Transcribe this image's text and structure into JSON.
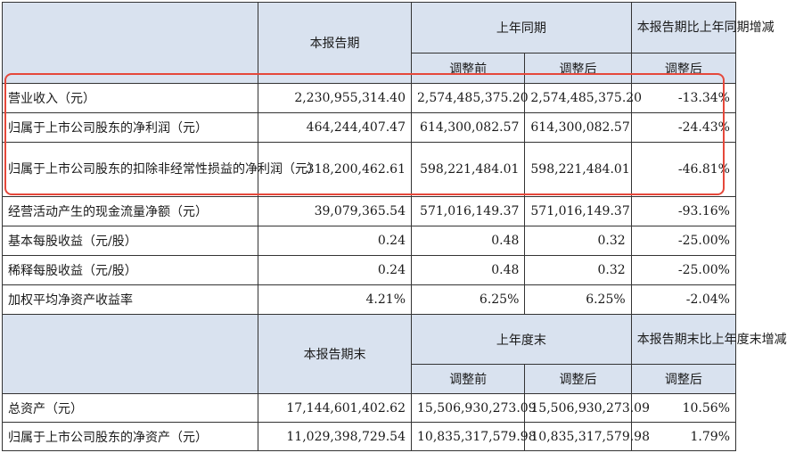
{
  "header1": {
    "current_period": "本报告期",
    "same_period_last_year": "上年同期",
    "change_label": "本报告期比上年同期增减",
    "before_adjust": "调整前",
    "after_adjust": "调整后",
    "change_sub": "调整后"
  },
  "rows1": [
    {
      "label": "营业收入（元）",
      "current": "2,230,955,314.40",
      "before": "2,574,485,375.20",
      "after": "2,574,485,375.20",
      "change": "-13.34%"
    },
    {
      "label": "归属于上市公司股东的净利润（元）",
      "current": "464,244,407.47",
      "before": "614,300,082.57",
      "after": "614,300,082.57",
      "change": "-24.43%"
    },
    {
      "label": "归属于上市公司股东的扣除非经常性损益的净利润（元）",
      "current": "318,200,462.61",
      "before": "598,221,484.01",
      "after": "598,221,484.01",
      "change": "-46.81%"
    },
    {
      "label": "经营活动产生的现金流量净额（元）",
      "current": "39,079,365.54",
      "before": "571,016,149.37",
      "after": "571,016,149.37",
      "change": "-93.16%"
    },
    {
      "label": "基本每股收益（元/股）",
      "current": "0.24",
      "before": "0.48",
      "after": "0.32",
      "change": "-25.00%"
    },
    {
      "label": "稀释每股收益（元/股）",
      "current": "0.24",
      "before": "0.48",
      "after": "0.32",
      "change": "-25.00%"
    },
    {
      "label": "加权平均净资产收益率",
      "current": "4.21%",
      "before": "6.25%",
      "after": "6.25%",
      "change": "-2.04%"
    }
  ],
  "header2": {
    "current_period_end": "本报告期末",
    "last_year_end": "上年度末",
    "change_label": "本报告期末比上年度末增减",
    "before_adjust": "调整前",
    "after_adjust": "调整后",
    "change_sub": "调整后"
  },
  "rows2": [
    {
      "label": "总资产（元）",
      "current": "17,144,601,402.62",
      "before": "15,506,930,273.09",
      "after": "15,506,930,273.09",
      "change": "10.56%"
    },
    {
      "label": "归属于上市公司股东的净资产（元）",
      "current": "11,029,398,729.54",
      "before": "10,835,317,579.98",
      "after": "10,835,317,579.98",
      "change": "1.79%"
    }
  ],
  "highlight_color": "#e5483b"
}
